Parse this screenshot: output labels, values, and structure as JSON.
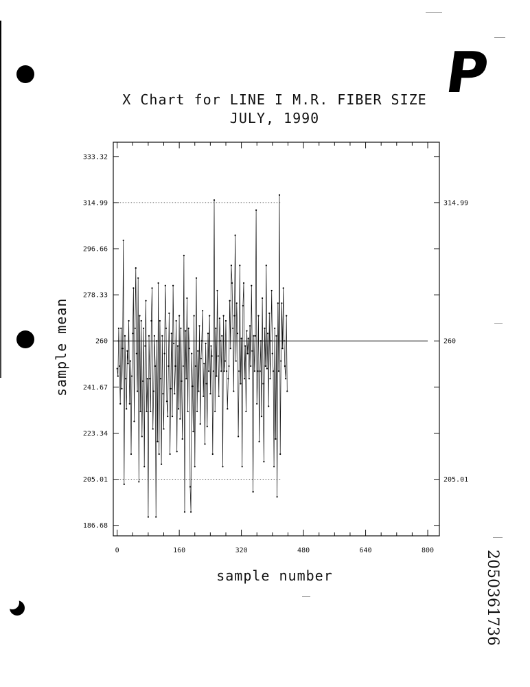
{
  "page": {
    "stamp_letter": "P",
    "doc_number": "2050361736"
  },
  "chart_data": {
    "type": "line",
    "title": "X Chart for LINE I M.R. FIBER SIZE",
    "subtitle": "JULY, 1990",
    "xlabel": "sample number",
    "ylabel": "sample mean",
    "xlim": [
      -10,
      830
    ],
    "ylim": [
      182.5,
      339
    ],
    "x_ticks": [
      "0",
      "160",
      "320",
      "480",
      "640",
      "800"
    ],
    "x_tick_values": [
      0,
      160,
      320,
      480,
      640,
      800
    ],
    "y_ticks": [
      "333.32",
      "314.99",
      "296.66",
      "278.33",
      "260",
      "241.67",
      "223.34",
      "205.01",
      "186.68"
    ],
    "y_tick_values": [
      333.32,
      314.99,
      296.66,
      278.33,
      260,
      241.67,
      223.34,
      205.01,
      186.68
    ],
    "right_labels": [
      "314.99",
      "260",
      "205.01"
    ],
    "center_line": 260,
    "ucl": 314.99,
    "lcl": 205.01,
    "limit_x_range": [
      0,
      420
    ],
    "center_x_range": [
      0,
      800
    ],
    "grid": false,
    "series": [
      {
        "x_start": 0,
        "x_step": 2,
        "values": [
          249,
          246,
          265,
          250,
          235,
          265,
          241,
          257,
          300,
          203,
          262,
          245,
          233,
          256,
          251,
          268,
          235,
          252,
          215,
          246,
          263,
          281,
          228,
          265,
          289,
          255,
          240,
          285,
          204,
          270,
          232,
          268,
          222,
          244,
          265,
          210,
          258,
          276,
          232,
          245,
          190,
          262,
          245,
          232,
          268,
          281,
          225,
          240,
          262,
          250,
          190,
          260,
          220,
          283,
          215,
          268,
          245,
          211,
          262,
          239,
          225,
          255,
          282,
          265,
          236,
          230,
          250,
          271,
          215,
          241,
          263,
          230,
          282,
          259,
          239,
          250,
          268,
          216,
          258,
          233,
          270,
          229,
          265,
          244,
          221,
          250,
          294,
          192,
          264,
          245,
          277,
          232,
          265,
          257,
          202,
          192,
          255,
          242,
          224,
          270,
          210,
          250,
          285,
          232,
          256,
          240,
          266,
          227,
          253,
          260,
          272,
          238,
          251,
          219,
          259,
          243,
          226,
          263,
          248,
          270,
          239,
          258,
          254,
          215,
          248,
          316,
          232,
          265,
          246,
          280,
          254,
          238,
          269,
          260,
          248,
          262,
          210,
          270,
          248,
          252,
          268,
          248,
          233,
          245,
          250,
          276,
          257,
          290,
          283,
          265,
          240,
          270,
          302,
          252,
          275,
          263,
          222,
          248,
          290,
          243,
          261,
          210,
          274,
          283,
          245,
          258,
          232,
          264,
          255,
          261,
          245,
          266,
          250,
          282,
          256,
          200,
          262,
          248,
          262,
          312,
          235,
          248,
          270,
          220,
          248,
          260,
          230,
          277,
          243,
          212,
          265,
          250,
          290,
          249,
          263,
          234,
          271,
          245,
          260,
          280,
          255,
          248,
          210,
          265,
          221,
          262,
          198,
          275,
          248,
          318,
          215,
          252,
          275,
          257,
          281,
          260,
          250,
          245,
          270,
          240
        ]
      }
    ]
  }
}
